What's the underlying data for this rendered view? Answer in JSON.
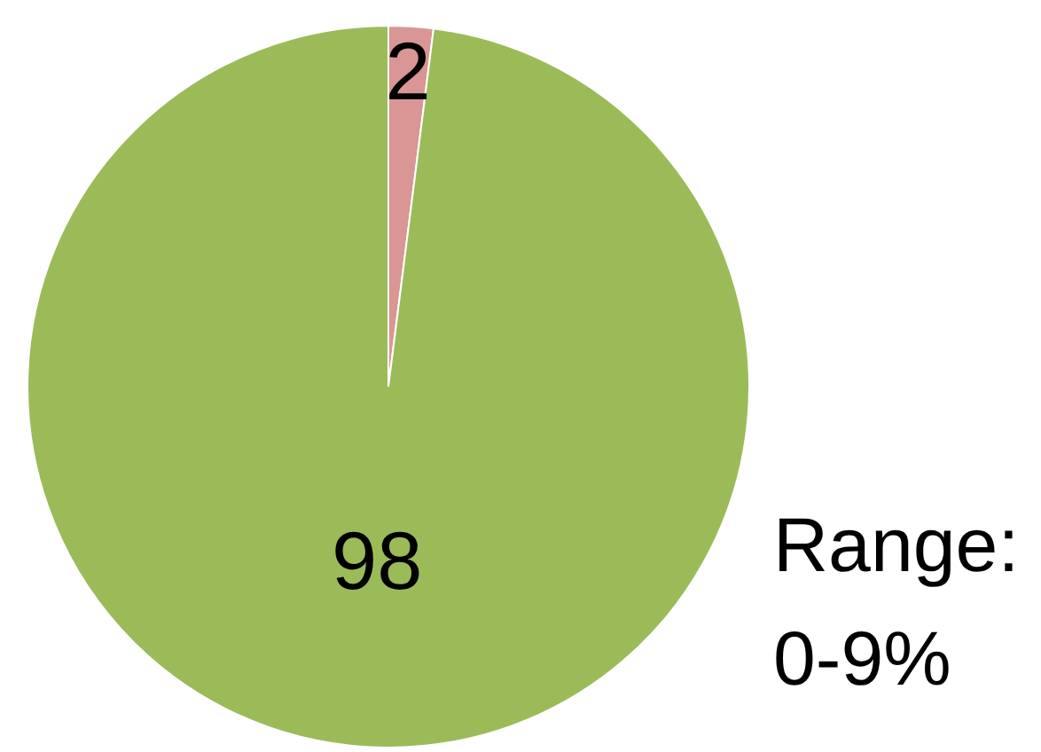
{
  "chart_data": {
    "type": "pie",
    "categories": [
      null,
      null
    ],
    "values": [
      2,
      98
    ],
    "colors": [
      "#d99694",
      "#9bbb59"
    ],
    "data_labels": true,
    "legend": false,
    "annotations": [
      "Range: 0-9%"
    ]
  }
}
